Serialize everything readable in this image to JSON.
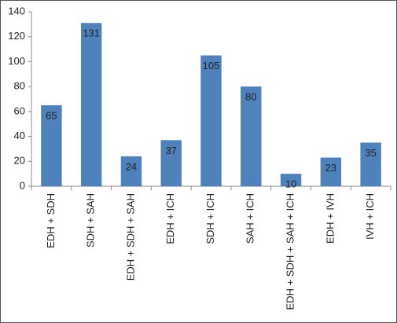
{
  "chart_data": {
    "type": "bar",
    "categories": [
      "EDH + SDH",
      "SDH + SAH",
      "EDH + SDH + SAH",
      "EDH + ICH",
      "SDH + ICH",
      "SAH + ICH",
      "EDH + SDH + SAH + ICH",
      "EDH + IVH",
      "IVH + ICH"
    ],
    "values": [
      65,
      131,
      24,
      37,
      105,
      80,
      10,
      23,
      35
    ],
    "color": "#4f81bd",
    "ylim": [
      0,
      140
    ],
    "yticks": [
      0,
      20,
      40,
      60,
      80,
      100,
      120,
      140
    ],
    "grid": false
  }
}
